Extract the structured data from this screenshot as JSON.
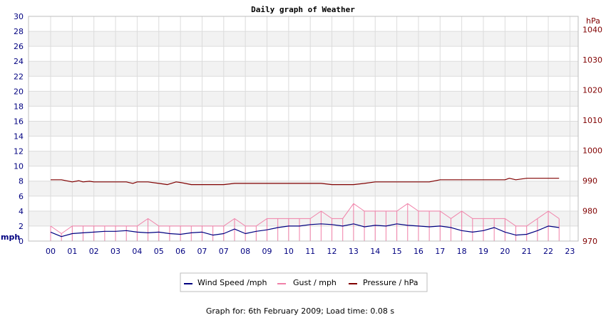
{
  "chart_data": {
    "type": "line",
    "title": "Daily graph of Weather",
    "ylabel_left": "mph",
    "ylabel_right": "hPa",
    "ylim_left": [
      0,
      30
    ],
    "ylim_right": [
      970,
      1044.4
    ],
    "y_ticks_left": [
      "0",
      "2",
      "4",
      "6",
      "8",
      "10",
      "12",
      "14",
      "16",
      "18",
      "20",
      "22",
      "24",
      "26",
      "28",
      "30"
    ],
    "y_ticks_right": [
      "970",
      "980",
      "990",
      "1000",
      "1010",
      "1020",
      "1030",
      "1040"
    ],
    "x_tick_labels": [
      "00",
      "01",
      "02",
      "03",
      "04",
      "05",
      "06",
      "07",
      "07",
      "08",
      "09",
      "10",
      "11",
      "12",
      "13",
      "14",
      "15",
      "16",
      "17",
      "18",
      "19",
      "20",
      "21",
      "22",
      "23"
    ],
    "grid": true,
    "legend_position": "bottom-center",
    "series": [
      {
        "name": "Wind Speed /mph",
        "axis": "left",
        "color": "#000080",
        "x": [
          0,
          0.5,
          1,
          1.5,
          2,
          2.5,
          3,
          3.5,
          4,
          4.5,
          5,
          5.5,
          6,
          6.5,
          7,
          7.5,
          8,
          8.5,
          9,
          9.5,
          10,
          10.5,
          11,
          11.5,
          12,
          12.5,
          13,
          13.5,
          14,
          14.5,
          15,
          15.5,
          16,
          16.5,
          17,
          17.5,
          18,
          18.5,
          19,
          19.5,
          20,
          20.5,
          21,
          21.5,
          22,
          22.5,
          23,
          23.5
        ],
        "values": [
          1.2,
          0.6,
          1.0,
          1.1,
          1.2,
          1.3,
          1.3,
          1.4,
          1.2,
          1.1,
          1.2,
          1.0,
          0.9,
          1.1,
          1.2,
          0.8,
          1.0,
          1.6,
          1.0,
          1.3,
          1.5,
          1.8,
          2.0,
          2.0,
          2.2,
          2.3,
          2.2,
          2.0,
          2.3,
          1.9,
          2.1,
          2.0,
          2.3,
          2.1,
          2.0,
          1.9,
          2.0,
          1.8,
          1.4,
          1.2,
          1.4,
          1.8,
          1.2,
          0.8,
          0.9,
          1.4,
          2.0,
          1.8
        ]
      },
      {
        "name": "Gust / mph",
        "axis": "left",
        "color": "#f080a8",
        "x": [
          0,
          0.5,
          1,
          1.5,
          2,
          2.5,
          3,
          3.5,
          4,
          4.5,
          5,
          5.5,
          6,
          6.5,
          7,
          7.5,
          8,
          8.5,
          9,
          9.5,
          10,
          10.5,
          11,
          11.5,
          12,
          12.5,
          13,
          13.5,
          14,
          14.5,
          15,
          15.5,
          16,
          16.5,
          17,
          17.5,
          18,
          18.5,
          19,
          19.5,
          20,
          20.5,
          21,
          21.5,
          22,
          22.5,
          23,
          23.5
        ],
        "values": [
          2,
          1,
          2,
          2,
          2,
          2,
          2,
          2,
          2,
          3,
          2,
          2,
          2,
          2,
          2,
          2,
          2,
          3,
          2,
          2,
          3,
          3,
          3,
          3,
          3,
          4,
          3,
          3,
          5,
          4,
          4,
          4,
          4,
          5,
          4,
          4,
          4,
          3,
          4,
          3,
          3,
          3,
          3,
          2,
          2,
          3,
          4,
          3
        ]
      },
      {
        "name": "Pressure / hPa",
        "axis": "right",
        "color": "#800000",
        "x": [
          0,
          0.5,
          1,
          1.3,
          1.5,
          1.8,
          2,
          2.5,
          3,
          3.5,
          3.8,
          4,
          4.5,
          5,
          5.4,
          5.8,
          6,
          6.5,
          7,
          7.5,
          8,
          8.5,
          9,
          10,
          11,
          12,
          12.5,
          13,
          13.5,
          14,
          14.5,
          15,
          16,
          17,
          17.5,
          18,
          19,
          20,
          20.5,
          21,
          21.2,
          21.5,
          22,
          23,
          23.5
        ],
        "values": [
          990.3,
          990.3,
          989.6,
          990.0,
          989.6,
          989.8,
          989.6,
          989.6,
          989.6,
          989.6,
          989.1,
          989.6,
          989.6,
          989.1,
          988.7,
          989.6,
          989.4,
          988.7,
          988.7,
          988.7,
          988.7,
          989.1,
          989.1,
          989.1,
          989.1,
          989.1,
          989.1,
          988.7,
          988.7,
          988.7,
          989.1,
          989.6,
          989.6,
          989.6,
          989.6,
          990.3,
          990.3,
          990.3,
          990.3,
          990.3,
          990.8,
          990.3,
          990.8,
          990.8,
          990.8
        ]
      }
    ]
  },
  "footer": {
    "text": "Graph for: 6th February 2009; Load time: 0.08 s"
  }
}
